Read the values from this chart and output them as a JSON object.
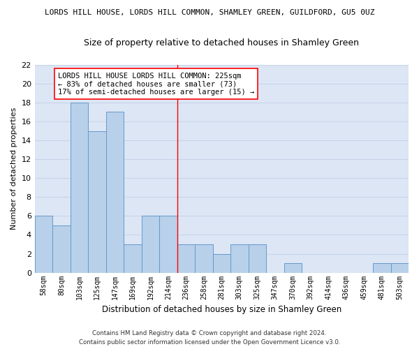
{
  "title": "LORDS HILL HOUSE, LORDS HILL COMMON, SHAMLEY GREEN, GUILDFORD, GU5 0UZ",
  "subtitle": "Size of property relative to detached houses in Shamley Green",
  "xlabel": "Distribution of detached houses by size in Shamley Green",
  "ylabel": "Number of detached properties",
  "categories": [
    "58sqm",
    "80sqm",
    "103sqm",
    "125sqm",
    "147sqm",
    "169sqm",
    "192sqm",
    "214sqm",
    "236sqm",
    "258sqm",
    "281sqm",
    "303sqm",
    "325sqm",
    "347sqm",
    "370sqm",
    "392sqm",
    "414sqm",
    "436sqm",
    "459sqm",
    "481sqm",
    "503sqm"
  ],
  "values": [
    6,
    5,
    18,
    15,
    17,
    3,
    6,
    6,
    3,
    3,
    2,
    3,
    3,
    0,
    1,
    0,
    0,
    0,
    0,
    1,
    1
  ],
  "bar_color": "#b8d0ea",
  "bar_edge_color": "#6699cc",
  "annotation_text": "LORDS HILL HOUSE LORDS HILL COMMON: 225sqm\n← 83% of detached houses are smaller (73)\n17% of semi-detached houses are larger (15) →",
  "ylim": [
    0,
    22
  ],
  "yticks": [
    0,
    2,
    4,
    6,
    8,
    10,
    12,
    14,
    16,
    18,
    20,
    22
  ],
  "grid_color": "#c8d4e8",
  "bg_color": "#dce6f5",
  "footer_line1": "Contains HM Land Registry data © Crown copyright and database right 2024.",
  "footer_line2": "Contains public sector information licensed under the Open Government Licence v3.0."
}
